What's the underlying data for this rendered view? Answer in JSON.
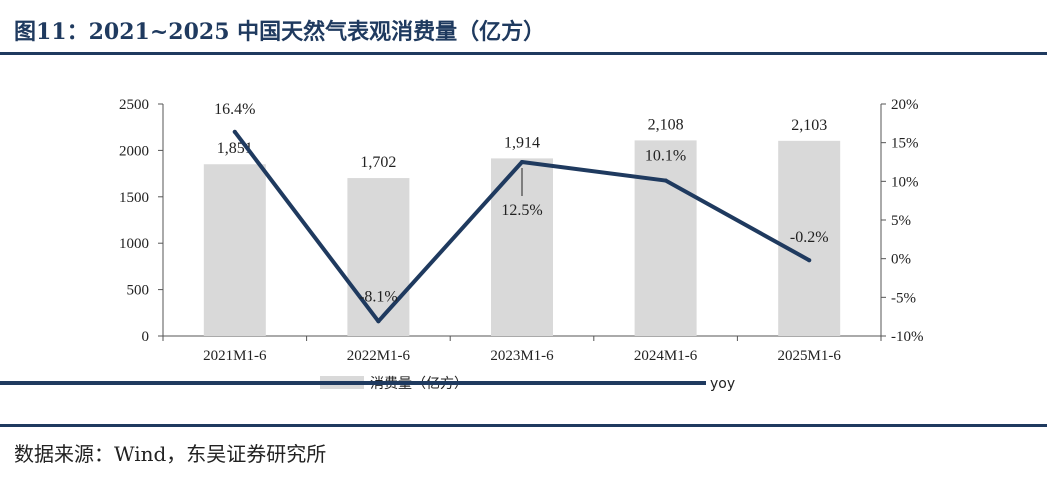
{
  "title": "图11：2021~2025 中国天然气表观消费量（亿方）",
  "source": "数据来源：Wind，东吴证券研究所",
  "colors": {
    "bar": "#d9d9d9",
    "line": "#1f3a5f",
    "title": "#1f3a5f"
  },
  "chart_data": {
    "type": "bar",
    "categories": [
      "2021M1-6",
      "2022M1-6",
      "2023M1-6",
      "2024M1-6",
      "2025M1-6"
    ],
    "series": [
      {
        "name": "消费量（亿方）",
        "type": "bar",
        "axis": "left",
        "values": [
          1851,
          1702,
          1914,
          2108,
          2103
        ],
        "labels": [
          "1,851",
          "1,702",
          "1,914",
          "2,108",
          "2,103"
        ]
      },
      {
        "name": "yoy",
        "type": "line",
        "axis": "right",
        "values": [
          16.4,
          -8.1,
          12.5,
          10.1,
          -0.2
        ],
        "labels": [
          "16.4%",
          "-8.1%",
          "12.5%",
          "10.1%",
          "-0.2%"
        ]
      }
    ],
    "left_axis": {
      "ylim": [
        0,
        2500
      ],
      "ticks": [
        0,
        500,
        1000,
        1500,
        2000,
        2500
      ],
      "tick_labels": [
        "0",
        "500",
        "1000",
        "1500",
        "2000",
        "2500"
      ]
    },
    "right_axis": {
      "ylim": [
        -10,
        20
      ],
      "ticks": [
        -10,
        -5,
        0,
        5,
        10,
        15,
        20
      ],
      "tick_labels": [
        "-10%",
        "-5%",
        "0%",
        "5%",
        "10%",
        "15%",
        "20%"
      ]
    },
    "grid": false,
    "legend_position": "bottom"
  }
}
